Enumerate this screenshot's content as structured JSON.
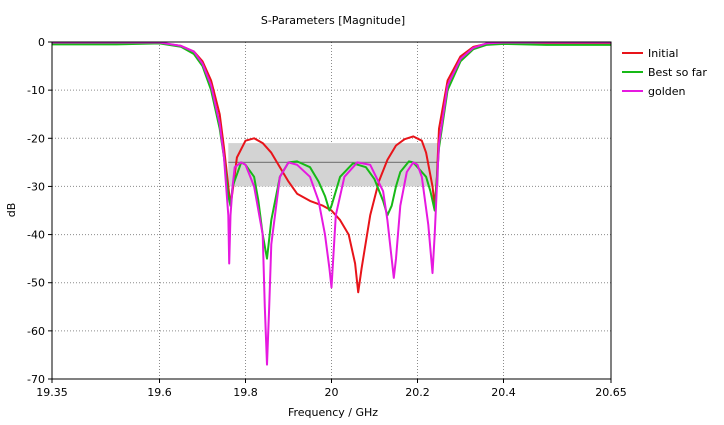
{
  "chart_data": {
    "type": "line",
    "title": "S-Parameters [Magnitude]",
    "xlabel": "Frequency / GHz",
    "ylabel": "dB",
    "xlim": [
      19.35,
      20.65
    ],
    "ylim": [
      -70,
      0
    ],
    "xticks": [
      "19.35",
      "19.6",
      "19.8",
      "20",
      "20.2",
      "20.4",
      "20.65"
    ],
    "xtick_values": [
      19.35,
      19.6,
      19.8,
      20.0,
      20.2,
      20.4,
      20.65
    ],
    "yticks": [
      "0",
      "-10",
      "-20",
      "-30",
      "-40",
      "-50",
      "-60",
      "-70"
    ],
    "ytick_values": [
      0,
      -10,
      -20,
      -30,
      -40,
      -50,
      -60,
      -70
    ],
    "grid": true,
    "legend_position": "right",
    "target_band": {
      "x": [
        19.76,
        20.25
      ],
      "upper": -21,
      "lower": -30,
      "line": -25,
      "fill_color": "#d3d3d3",
      "line_color": "#7f7f7f"
    },
    "series": [
      {
        "name": "Initial",
        "color": "#e8141a",
        "x": [
          19.35,
          19.5,
          19.6,
          19.65,
          19.68,
          19.7,
          19.72,
          19.74,
          19.75,
          19.76,
          19.765,
          19.77,
          19.78,
          19.8,
          19.82,
          19.84,
          19.86,
          19.88,
          19.9,
          19.92,
          19.95,
          19.98,
          20.0,
          20.02,
          20.04,
          20.055,
          20.062,
          20.07,
          20.09,
          20.11,
          20.13,
          20.15,
          20.17,
          20.19,
          20.21,
          20.22,
          20.235,
          20.24,
          20.245,
          20.25,
          20.27,
          20.3,
          20.33,
          20.36,
          20.4,
          20.5,
          20.65
        ],
        "y": [
          -0.3,
          -0.3,
          -0.2,
          -0.8,
          -2,
          -4,
          -8,
          -15,
          -22,
          -30,
          -34,
          -31,
          -24,
          -20.5,
          -20,
          -21,
          -23,
          -26,
          -29,
          -31.5,
          -33,
          -34,
          -35,
          -37,
          -40,
          -46,
          -52,
          -47,
          -36,
          -29,
          -24.5,
          -21.5,
          -20.2,
          -19.6,
          -20.5,
          -23,
          -30,
          -34,
          -28,
          -18,
          -8,
          -3,
          -1,
          -0.4,
          -0.2,
          -0.3,
          -0.3
        ]
      },
      {
        "name": "Best so far",
        "color": "#17b917",
        "x": [
          19.35,
          19.5,
          19.6,
          19.65,
          19.68,
          19.7,
          19.72,
          19.74,
          19.75,
          19.76,
          19.765,
          19.77,
          19.79,
          19.8,
          19.82,
          19.83,
          19.84,
          19.85,
          19.86,
          19.88,
          19.9,
          19.92,
          19.95,
          19.97,
          19.985,
          19.995,
          20.0,
          20.02,
          20.05,
          20.08,
          20.1,
          20.12,
          20.13,
          20.14,
          20.15,
          20.16,
          20.18,
          20.19,
          20.2,
          20.22,
          20.23,
          20.24,
          20.25,
          20.27,
          20.3,
          20.33,
          20.36,
          20.4,
          20.5,
          20.65
        ],
        "y": [
          -0.5,
          -0.5,
          -0.3,
          -1,
          -2.5,
          -5,
          -10,
          -18,
          -24,
          -32,
          -34,
          -30,
          -25,
          -25.5,
          -28,
          -33,
          -40,
          -45,
          -37,
          -28,
          -25,
          -24.8,
          -26,
          -29,
          -32,
          -35,
          -34,
          -28,
          -25.2,
          -26,
          -28.5,
          -33,
          -36,
          -34,
          -30,
          -27,
          -24.8,
          -25,
          -26,
          -28,
          -31,
          -35,
          -22,
          -10,
          -4,
          -1.5,
          -0.6,
          -0.4,
          -0.6,
          -0.6
        ]
      },
      {
        "name": "golden",
        "color": "#e619e0",
        "x": [
          19.35,
          19.5,
          19.6,
          19.65,
          19.68,
          19.7,
          19.72,
          19.74,
          19.75,
          19.76,
          19.762,
          19.765,
          19.77,
          19.775,
          19.79,
          19.8,
          19.82,
          19.84,
          19.845,
          19.85,
          19.855,
          19.86,
          19.88,
          19.9,
          19.92,
          19.95,
          19.97,
          19.985,
          19.995,
          20.0,
          20.01,
          20.03,
          20.06,
          20.09,
          20.12,
          20.13,
          20.145,
          20.15,
          20.16,
          20.175,
          20.19,
          20.2,
          20.21,
          20.225,
          20.235,
          20.24,
          20.245,
          20.25,
          20.27,
          20.3,
          20.33,
          20.36,
          20.4,
          20.5,
          20.65
        ],
        "y": [
          -0.1,
          -0.1,
          -0.1,
          -0.8,
          -2,
          -4.5,
          -9,
          -17,
          -24,
          -36,
          -46,
          -36,
          -30,
          -26,
          -25,
          -25.5,
          -30,
          -40,
          -55,
          -67,
          -55,
          -42,
          -28,
          -25,
          -25.5,
          -28,
          -33,
          -40,
          -47,
          -51,
          -36,
          -28,
          -25,
          -25.5,
          -31,
          -37,
          -49,
          -45,
          -34,
          -27,
          -25,
          -25.5,
          -28,
          -38,
          -48,
          -40,
          -30,
          -21,
          -9,
          -3.5,
          -1.2,
          -0.3,
          -0.1,
          -0.1,
          -0.1
        ]
      }
    ]
  }
}
